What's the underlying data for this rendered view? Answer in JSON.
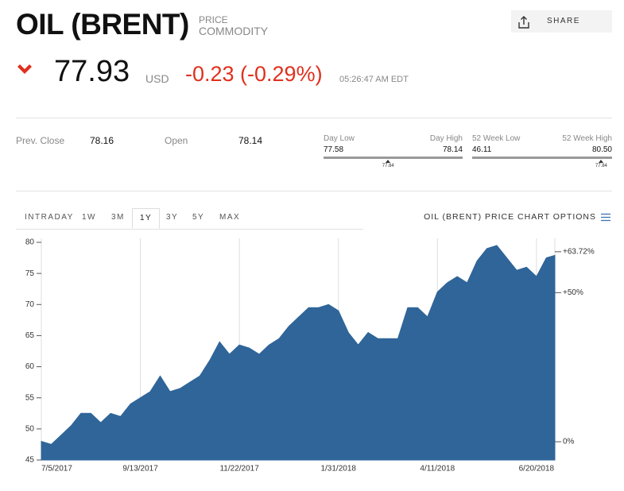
{
  "header": {
    "title": "OIL (BRENT)",
    "type_label": "PRICE",
    "subtype": "COMMODITY",
    "share": "SHARE"
  },
  "quote": {
    "price": "77.93",
    "currency": "USD",
    "change": "-0.23 (-0.29%)",
    "time": "05:26:47 AM EDT"
  },
  "stats": {
    "prev_close_label": "Prev. Close",
    "prev_close": "78.16",
    "open_label": "Open",
    "open": "78.14"
  },
  "ranges": [
    {
      "low_label": "Day Low",
      "low": "77.58",
      "high_label": "Day High",
      "high": "78.14",
      "current": "77.84"
    },
    {
      "low_label": "52 Week Low",
      "low": "46.11",
      "high_label": "52 Week High",
      "high": "80.50",
      "current": "77.84"
    }
  ],
  "tabs": [
    "INTRADAY",
    "1W",
    "3M",
    "1Y",
    "3Y",
    "5Y",
    "MAX"
  ],
  "selected_tab": "1Y",
  "chart_options": "OIL (BRENT) PRICE CHART OPTIONS",
  "chart_data": {
    "type": "area",
    "color": "#2f6599",
    "x": [
      "7/5/2017",
      "7/12/2017",
      "7/19/2017",
      "7/26/2017",
      "8/2/2017",
      "8/9/2017",
      "8/16/2017",
      "8/23/2017",
      "8/30/2017",
      "9/6/2017",
      "9/13/2017",
      "9/20/2017",
      "9/27/2017",
      "10/4/2017",
      "10/11/2017",
      "10/18/2017",
      "10/25/2017",
      "11/1/2017",
      "11/8/2017",
      "11/15/2017",
      "11/22/2017",
      "11/29/2017",
      "12/6/2017",
      "12/13/2017",
      "12/20/2017",
      "12/27/2017",
      "1/3/2018",
      "1/10/2018",
      "1/17/2018",
      "1/24/2018",
      "1/31/2018",
      "2/7/2018",
      "2/14/2018",
      "2/21/2018",
      "2/28/2018",
      "3/7/2018",
      "3/14/2018",
      "3/21/2018",
      "3/28/2018",
      "4/4/2018",
      "4/11/2018",
      "4/18/2018",
      "4/25/2018",
      "5/2/2018",
      "5/9/2018",
      "5/16/2018",
      "5/23/2018",
      "5/30/2018",
      "6/6/2018",
      "6/13/2018",
      "6/20/2018",
      "6/27/2018",
      "7/3/2018"
    ],
    "values": [
      48,
      47.5,
      49,
      50.5,
      52.5,
      52.5,
      51,
      52.5,
      52,
      54,
      55,
      56,
      58.5,
      56,
      56.5,
      57.5,
      58.5,
      61,
      64,
      62,
      63.5,
      63,
      62,
      63.5,
      64.5,
      66.5,
      68,
      69.5,
      69.5,
      70,
      69,
      65.5,
      63.5,
      65.5,
      64.5,
      64.5,
      64.5,
      69.5,
      69.5,
      68,
      72,
      73.5,
      74.5,
      73.5,
      77,
      79,
      79.5,
      77.5,
      75.5,
      76,
      74.5,
      77.5,
      77.9
    ],
    "xlim": [
      "7/5/2017",
      "7/3/2018"
    ],
    "xticks": [
      "7/5/2017",
      "9/13/2017",
      "11/22/2017",
      "1/31/2018",
      "4/11/2018",
      "6/20/2018"
    ],
    "ylim": [
      45,
      80
    ],
    "yticks": [
      45,
      50,
      55,
      60,
      65,
      70,
      75,
      80
    ],
    "y2lim": [
      -6.13,
      66.88
    ],
    "y2ticks": [
      {
        "value": 0,
        "label": "0%"
      },
      {
        "value": 50,
        "label": "+50%"
      },
      {
        "value": 63.72,
        "label": "+63.72%"
      }
    ],
    "y2_highlight_color": "#5cb85c",
    "grid": true
  }
}
